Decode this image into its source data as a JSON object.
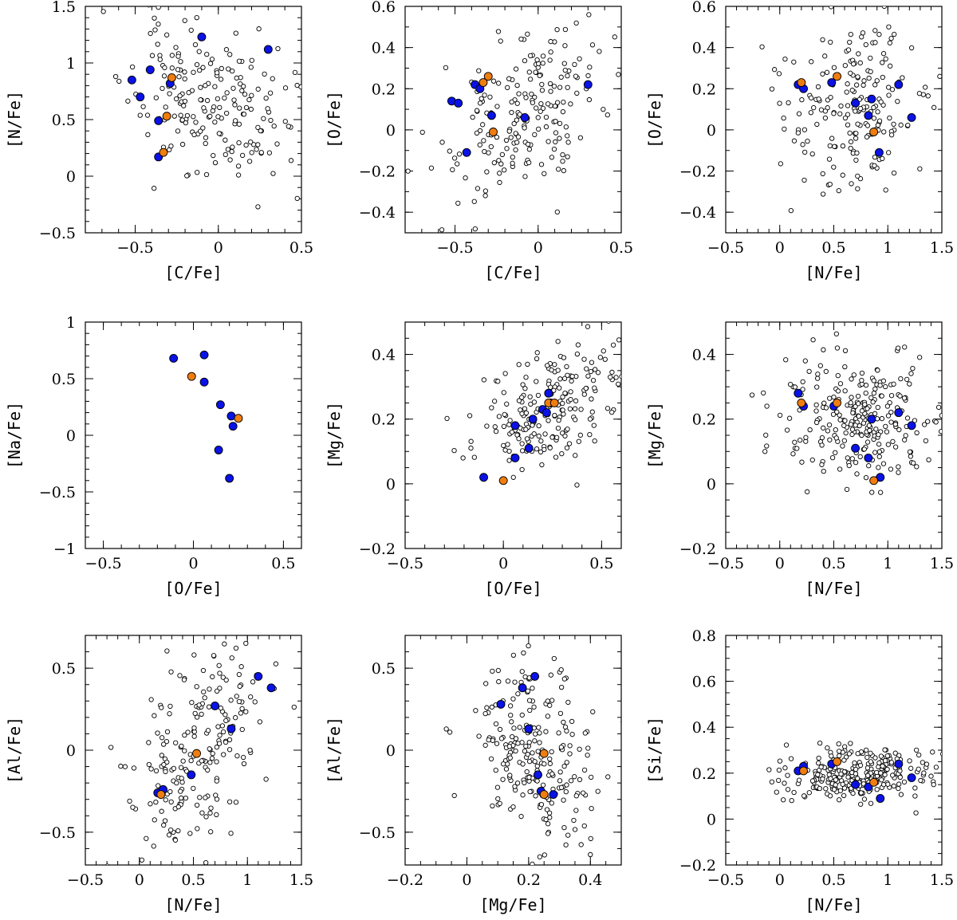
{
  "colors": {
    "blue": "#0a12e6",
    "orange": "#f07d10",
    "open": "#ffffff"
  },
  "chart_data": [
    {
      "type": "scatter",
      "title": "",
      "xlabel": "[C/Fe]",
      "ylabel": "[N/Fe]",
      "xlim": [
        -0.8,
        0.5
      ],
      "ylim": [
        -0.5,
        1.5
      ],
      "xticks": [
        -0.5,
        0,
        0.5
      ],
      "xticklabels": [
        "−0.5",
        "0",
        "0.5"
      ],
      "yticks": [
        -0.5,
        0,
        0.5,
        1,
        1.5
      ],
      "yticklabels": [
        "−0.5",
        "0",
        "0.5",
        "1",
        "1.5"
      ],
      "series": [
        {
          "style": "open",
          "seed": 11,
          "n": 200,
          "mx": -0.05,
          "sx": 0.24,
          "my": 0.65,
          "sy": 0.33,
          "rho": -0.3
        },
        {
          "style": "blue",
          "points": [
            [
              -0.52,
              0.85
            ],
            [
              -0.47,
              0.7
            ],
            [
              -0.41,
              0.94
            ],
            [
              -0.36,
              0.49
            ],
            [
              -0.36,
              0.17
            ],
            [
              -0.29,
              0.82
            ],
            [
              -0.1,
              1.23
            ],
            [
              0.3,
              1.12
            ]
          ]
        },
        {
          "style": "orange",
          "points": [
            [
              -0.28,
              0.87
            ],
            [
              -0.31,
              0.53
            ],
            [
              -0.33,
              0.21
            ]
          ]
        }
      ]
    },
    {
      "type": "scatter",
      "title": "",
      "xlabel": "[C/Fe]",
      "ylabel": "[O/Fe]",
      "xlim": [
        -0.8,
        0.5
      ],
      "ylim": [
        -0.5,
        0.6
      ],
      "xticks": [
        -0.5,
        0,
        0.5
      ],
      "xticklabels": [
        "−0.5",
        "0",
        "0.5"
      ],
      "yticks": [
        -0.4,
        -0.2,
        0,
        0.2,
        0.4,
        0.6
      ],
      "yticklabels": [
        "−0.4",
        "−0.2",
        "0",
        "0.2",
        "0.4",
        "0.6"
      ],
      "series": [
        {
          "style": "open",
          "seed": 22,
          "n": 200,
          "mx": -0.1,
          "sx": 0.26,
          "my": 0.08,
          "sy": 0.22,
          "rho": 0.6
        },
        {
          "style": "blue",
          "points": [
            [
              -0.52,
              0.14
            ],
            [
              -0.48,
              0.13
            ],
            [
              -0.43,
              -0.11
            ],
            [
              -0.38,
              0.22
            ],
            [
              -0.35,
              0.2
            ],
            [
              -0.28,
              0.07
            ],
            [
              -0.08,
              0.06
            ],
            [
              0.3,
              0.22
            ]
          ]
        },
        {
          "style": "orange",
          "points": [
            [
              -0.3,
              0.26
            ],
            [
              -0.33,
              0.23
            ],
            [
              -0.27,
              -0.01
            ]
          ]
        }
      ]
    },
    {
      "type": "scatter",
      "title": "",
      "xlabel": "[N/Fe]",
      "ylabel": "[O/Fe]",
      "xlim": [
        -0.5,
        1.5
      ],
      "ylim": [
        -0.5,
        0.6
      ],
      "xticks": [
        -0.5,
        0,
        0.5,
        1,
        1.5
      ],
      "xticklabels": [
        "−0.5",
        "0",
        "0.5",
        "1",
        "1.5"
      ],
      "yticks": [
        -0.4,
        -0.2,
        0,
        0.2,
        0.4,
        0.6
      ],
      "yticklabels": [
        "−0.4",
        "−0.2",
        "0",
        "0.2",
        "0.4",
        "0.6"
      ],
      "series": [
        {
          "style": "open",
          "seed": 33,
          "n": 200,
          "mx": 0.68,
          "sx": 0.33,
          "my": 0.12,
          "sy": 0.22,
          "rho": 0.0
        },
        {
          "style": "blue",
          "points": [
            [
              0.17,
              0.22
            ],
            [
              0.22,
              0.2
            ],
            [
              0.48,
              0.23
            ],
            [
              0.7,
              0.13
            ],
            [
              0.82,
              0.07
            ],
            [
              0.85,
              0.15
            ],
            [
              0.92,
              -0.11
            ],
            [
              1.1,
              0.22
            ],
            [
              1.22,
              0.06
            ]
          ]
        },
        {
          "style": "orange",
          "points": [
            [
              0.2,
              0.23
            ],
            [
              0.53,
              0.26
            ],
            [
              0.87,
              -0.01
            ]
          ]
        }
      ]
    },
    {
      "type": "scatter",
      "title": "",
      "xlabel": "[O/Fe]",
      "ylabel": "[Na/Fe]",
      "xlim": [
        -0.6,
        0.6
      ],
      "ylim": [
        -1,
        1
      ],
      "xticks": [
        -0.5,
        0,
        0.5
      ],
      "xticklabels": [
        "−0.5",
        "0",
        "0.5"
      ],
      "yticks": [
        -1,
        -0.5,
        0,
        0.5,
        1
      ],
      "yticklabels": [
        "−1",
        "−0.5",
        "0",
        "0.5",
        "1"
      ],
      "series": [
        {
          "style": "blue",
          "points": [
            [
              -0.11,
              0.68
            ],
            [
              0.06,
              0.71
            ],
            [
              0.06,
              0.47
            ],
            [
              0.15,
              0.27
            ],
            [
              0.21,
              0.17
            ],
            [
              0.22,
              0.08
            ],
            [
              0.14,
              -0.13
            ],
            [
              0.2,
              -0.38
            ]
          ]
        },
        {
          "style": "orange",
          "points": [
            [
              -0.01,
              0.52
            ],
            [
              0.25,
              0.15
            ]
          ]
        }
      ]
    },
    {
      "type": "scatter",
      "title": "",
      "xlabel": "[O/Fe]",
      "ylabel": "[Mg/Fe]",
      "xlim": [
        -0.5,
        0.6
      ],
      "ylim": [
        -0.2,
        0.5
      ],
      "xticks": [
        -0.5,
        0,
        0.5
      ],
      "xticklabels": [
        "−0.5",
        "0",
        "0.5"
      ],
      "yticks": [
        -0.2,
        0,
        0.2,
        0.4
      ],
      "yticklabels": [
        "−0.2",
        "0",
        "0.2",
        "0.4"
      ],
      "series": [
        {
          "style": "open",
          "seed": 44,
          "n": 210,
          "mx": 0.22,
          "sx": 0.2,
          "my": 0.22,
          "sy": 0.1,
          "rho": 0.55
        },
        {
          "style": "blue",
          "points": [
            [
              -0.1,
              0.02
            ],
            [
              0.06,
              0.08
            ],
            [
              0.06,
              0.18
            ],
            [
              0.13,
              0.11
            ],
            [
              0.15,
              0.2
            ],
            [
              0.2,
              0.23
            ],
            [
              0.22,
              0.22
            ],
            [
              0.23,
              0.28
            ],
            [
              0.24,
              0.25
            ]
          ]
        },
        {
          "style": "orange",
          "points": [
            [
              0.0,
              0.01
            ],
            [
              0.23,
              0.25
            ],
            [
              0.26,
              0.25
            ]
          ]
        }
      ]
    },
    {
      "type": "scatter",
      "title": "",
      "xlabel": "[N/Fe]",
      "ylabel": "[Mg/Fe]",
      "xlim": [
        -0.5,
        1.5
      ],
      "ylim": [
        -0.2,
        0.5
      ],
      "xticks": [
        -0.5,
        0,
        0.5,
        1,
        1.5
      ],
      "xticklabels": [
        "−0.5",
        "0",
        "0.5",
        "1",
        "1.5"
      ],
      "yticks": [
        -0.2,
        0,
        0.2,
        0.4
      ],
      "yticklabels": [
        "−0.2",
        "0",
        "0.2",
        "0.4"
      ],
      "series": [
        {
          "style": "open",
          "seed": 55,
          "n": 260,
          "mx": 0.72,
          "sx": 0.35,
          "my": 0.2,
          "sy": 0.1,
          "rho": -0.1
        },
        {
          "style": "blue",
          "points": [
            [
              0.17,
              0.28
            ],
            [
              0.22,
              0.24
            ],
            [
              0.5,
              0.24
            ],
            [
              0.7,
              0.11
            ],
            [
              0.82,
              0.08
            ],
            [
              0.85,
              0.2
            ],
            [
              0.93,
              0.02
            ],
            [
              1.1,
              0.22
            ],
            [
              1.22,
              0.18
            ]
          ]
        },
        {
          "style": "orange",
          "points": [
            [
              0.2,
              0.25
            ],
            [
              0.53,
              0.25
            ],
            [
              0.87,
              0.01
            ]
          ]
        }
      ]
    },
    {
      "type": "scatter",
      "title": "",
      "xlabel": "[N/Fe]",
      "ylabel": "[Al/Fe]",
      "xlim": [
        -0.5,
        1.5
      ],
      "ylim": [
        -0.7,
        0.7
      ],
      "xticks": [
        -0.5,
        0,
        0.5,
        1,
        1.5
      ],
      "xticklabels": [
        "−0.5",
        "0",
        "0.5",
        "1",
        "1.5"
      ],
      "yticks": [
        -0.5,
        0,
        0.5
      ],
      "yticklabels": [
        "−0.5",
        "0",
        "0.5"
      ],
      "series": [
        {
          "style": "open",
          "seed": 66,
          "n": 220,
          "mx": 0.6,
          "sx": 0.33,
          "my": 0.05,
          "sy": 0.35,
          "rho": 0.55
        },
        {
          "style": "blue",
          "points": [
            [
              0.17,
              -0.26
            ],
            [
              0.22,
              -0.24
            ],
            [
              0.48,
              -0.15
            ],
            [
              0.7,
              0.27
            ],
            [
              0.85,
              0.13
            ],
            [
              1.1,
              0.45
            ],
            [
              1.22,
              0.38
            ]
          ]
        },
        {
          "style": "orange",
          "points": [
            [
              0.2,
              -0.27
            ],
            [
              0.53,
              -0.02
            ]
          ]
        }
      ]
    },
    {
      "type": "scatter",
      "title": "",
      "xlabel": "[Mg/Fe]",
      "ylabel": "[Al/Fe]",
      "xlim": [
        -0.2,
        0.5
      ],
      "ylim": [
        -0.7,
        0.7
      ],
      "xticks": [
        -0.2,
        0,
        0.2,
        0.4
      ],
      "xticklabels": [
        "−0.2",
        "0",
        "0.2",
        "0.4"
      ],
      "yticks": [
        -0.5,
        0,
        0.5
      ],
      "yticklabels": [
        "−0.5",
        "0",
        "0.5"
      ],
      "series": [
        {
          "style": "open",
          "seed": 77,
          "n": 240,
          "mx": 0.22,
          "sx": 0.1,
          "my": -0.02,
          "sy": 0.33,
          "rho": -0.35
        },
        {
          "style": "blue",
          "points": [
            [
              0.11,
              0.28
            ],
            [
              0.18,
              0.38
            ],
            [
              0.2,
              0.13
            ],
            [
              0.22,
              0.45
            ],
            [
              0.23,
              -0.15
            ],
            [
              0.24,
              -0.25
            ],
            [
              0.28,
              -0.27
            ]
          ]
        },
        {
          "style": "orange",
          "points": [
            [
              0.25,
              -0.02
            ],
            [
              0.25,
              -0.27
            ]
          ]
        }
      ]
    },
    {
      "type": "scatter",
      "title": "",
      "xlabel": "[N/Fe]",
      "ylabel": "[Si/Fe]",
      "xlim": [
        -0.5,
        1.5
      ],
      "ylim": [
        -0.2,
        0.8
      ],
      "xticks": [
        -0.5,
        0,
        0.5,
        1,
        1.5
      ],
      "xticklabels": [
        "−0.5",
        "0",
        "0.5",
        "1",
        "1.5"
      ],
      "yticks": [
        -0.2,
        0,
        0.2,
        0.4,
        0.6,
        0.8
      ],
      "yticklabels": [
        "−0.2",
        "0",
        "0.2",
        "0.4",
        "0.6",
        "0.8"
      ],
      "series": [
        {
          "style": "open",
          "seed": 88,
          "n": 280,
          "mx": 0.72,
          "sx": 0.32,
          "my": 0.2,
          "sy": 0.06,
          "rho": 0.1
        },
        {
          "style": "blue",
          "points": [
            [
              0.17,
              0.21
            ],
            [
              0.22,
              0.23
            ],
            [
              0.48,
              0.24
            ],
            [
              0.7,
              0.15
            ],
            [
              0.82,
              0.14
            ],
            [
              0.93,
              0.09
            ],
            [
              1.1,
              0.24
            ],
            [
              1.22,
              0.18
            ]
          ]
        },
        {
          "style": "orange",
          "points": [
            [
              0.22,
              0.21
            ],
            [
              0.53,
              0.25
            ],
            [
              0.87,
              0.16
            ]
          ]
        }
      ]
    }
  ]
}
